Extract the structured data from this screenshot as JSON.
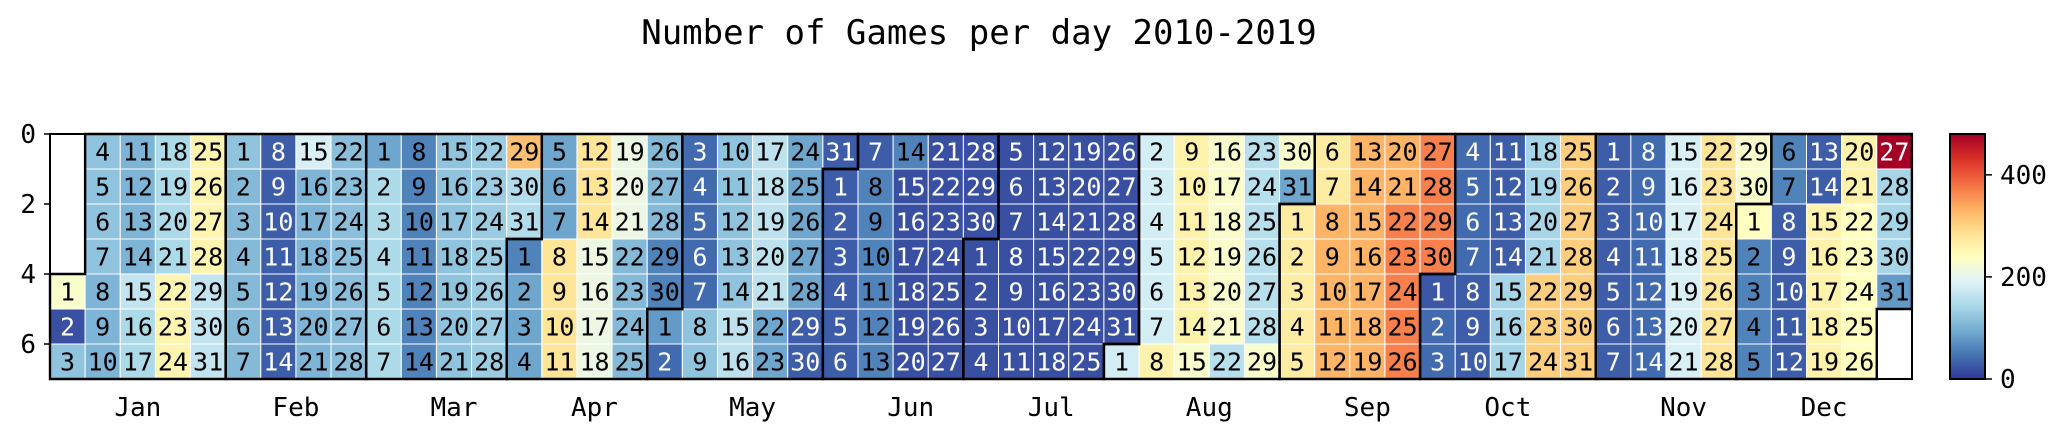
{
  "chart_data": {
    "type": "heatmap",
    "title": "Number of Games per day 2010-2019",
    "xlabel": "",
    "ylabel": "",
    "start_weekday": 4,
    "days_in_month": [
      31,
      28,
      31,
      30,
      31,
      30,
      31,
      31,
      30,
      31,
      30,
      31
    ],
    "months": [
      "Jan",
      "Feb",
      "Mar",
      "Apr",
      "May",
      "Jun",
      "Jul",
      "Aug",
      "Sep",
      "Oct",
      "Nov",
      "Dec"
    ],
    "y_ticks": [
      0,
      2,
      4,
      6
    ],
    "colorbar_ticks": [
      0,
      200,
      400
    ],
    "vmin": 0,
    "vmax": 480,
    "colormap": [
      "#313695",
      "#4575b4",
      "#74add1",
      "#abd9e9",
      "#e0f3f8",
      "#ffffbf",
      "#fee090",
      "#fdae61",
      "#f46d43",
      "#d73027",
      "#a50026"
    ],
    "values": [
      [
        230,
        20,
        120,
        120,
        120,
        120,
        120,
        105,
        105,
        105,
        105,
        105,
        105,
        105,
        165,
        145,
        145,
        145,
        145,
        145,
        145,
        255,
        255,
        255,
        255,
        255,
        255,
        255,
        165,
        165,
        165
      ],
      [
        120,
        110,
        110,
        110,
        110,
        110,
        110,
        30,
        30,
        30,
        30,
        30,
        30,
        30,
        185,
        105,
        105,
        105,
        105,
        105,
        105,
        115,
        115,
        115,
        115,
        115,
        115,
        115
      ],
      [
        90,
        145,
        145,
        145,
        145,
        145,
        145,
        60,
        60,
        60,
        60,
        60,
        60,
        60,
        120,
        120,
        120,
        120,
        120,
        120,
        120,
        130,
        130,
        130,
        130,
        130,
        130,
        130,
        320,
        150,
        150
      ],
      [
        60,
        90,
        90,
        90,
        90,
        90,
        90,
        280,
        280,
        280,
        280,
        280,
        280,
        280,
        210,
        210,
        210,
        210,
        210,
        210,
        210,
        110,
        110,
        110,
        110,
        110,
        110,
        110,
        60,
        60
      ],
      [
        80,
        40,
        40,
        40,
        40,
        40,
        40,
        120,
        120,
        120,
        120,
        120,
        120,
        120,
        160,
        160,
        160,
        160,
        160,
        160,
        160,
        90,
        90,
        90,
        90,
        90,
        90,
        90,
        30,
        30,
        30
      ],
      [
        30,
        30,
        30,
        30,
        30,
        30,
        30,
        60,
        60,
        60,
        60,
        60,
        60,
        60,
        20,
        20,
        20,
        20,
        20,
        20,
        20,
        20,
        20,
        20,
        20,
        20,
        20,
        20,
        20,
        20
      ],
      [
        20,
        20,
        20,
        20,
        20,
        20,
        20,
        20,
        20,
        20,
        20,
        20,
        20,
        20,
        20,
        20,
        20,
        20,
        20,
        20,
        20,
        20,
        20,
        20,
        20,
        20,
        20,
        20,
        20,
        20,
        20
      ],
      [
        180,
        180,
        180,
        180,
        180,
        180,
        180,
        260,
        260,
        260,
        260,
        260,
        260,
        260,
        230,
        230,
        230,
        230,
        230,
        230,
        230,
        155,
        155,
        155,
        155,
        155,
        155,
        155,
        230,
        230,
        90
      ],
      [
        270,
        270,
        270,
        270,
        270,
        270,
        270,
        330,
        330,
        330,
        330,
        330,
        330,
        330,
        330,
        330,
        330,
        330,
        330,
        330,
        330,
        370,
        370,
        370,
        370,
        370,
        370,
        370,
        370,
        370
      ],
      [
        25,
        40,
        40,
        40,
        40,
        40,
        40,
        30,
        30,
        30,
        30,
        30,
        30,
        30,
        140,
        140,
        140,
        140,
        140,
        140,
        140,
        305,
        305,
        305,
        305,
        305,
        305,
        305,
        305,
        305,
        305
      ],
      [
        30,
        30,
        30,
        30,
        30,
        30,
        30,
        40,
        40,
        40,
        40,
        40,
        40,
        40,
        185,
        185,
        185,
        185,
        185,
        185,
        185,
        280,
        280,
        280,
        280,
        280,
        280,
        280,
        230,
        230
      ],
      [
        240,
        60,
        60,
        60,
        60,
        60,
        60,
        30,
        30,
        30,
        30,
        30,
        30,
        30,
        260,
        260,
        260,
        260,
        260,
        260,
        260,
        240,
        240,
        240,
        240,
        240,
        480,
        140,
        140,
        140,
        80
      ]
    ]
  }
}
